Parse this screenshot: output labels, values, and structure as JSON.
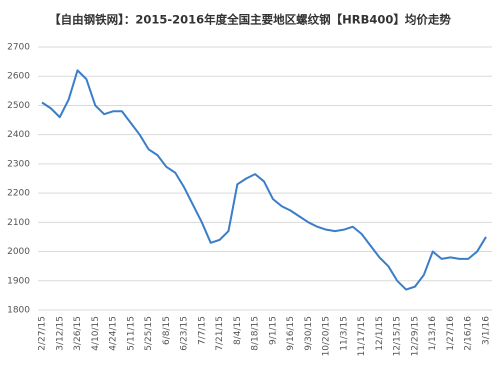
{
  "chart_data": {
    "type": "line",
    "title": "【自由钢铁网】：2015-2016年度全国主要地区螺纹钢【HRB400】均价走势",
    "categories": [
      "2/27/15",
      null,
      "3/12/15",
      null,
      "3/26/15",
      null,
      "4/10/15",
      null,
      "4/24/15",
      null,
      "5/11/15",
      null,
      "5/25/15",
      null,
      "6/8/15",
      null,
      "6/23/15",
      null,
      "7/7/15",
      null,
      "7/21/15",
      null,
      "8/4/15",
      null,
      "8/18/15",
      null,
      "9/1/15",
      null,
      "9/16/15",
      null,
      "9/30/15",
      null,
      "10/20/15",
      null,
      "11/3/15",
      null,
      "11/17/15",
      null,
      "12/1/15",
      null,
      "12/15/15",
      null,
      "12/29/15",
      null,
      "1/13/16",
      null,
      "1/27/16",
      null,
      "2/16/16",
      null,
      "3/1/16"
    ],
    "series": [
      {
        "color": "#3a7dc9",
        "values": [
          2510,
          2490,
          2460,
          2520,
          2620,
          2590,
          2500,
          2470,
          2480,
          2480,
          2440,
          2400,
          2350,
          2330,
          2290,
          2270,
          2220,
          2160,
          2100,
          2030,
          2040,
          2070,
          2230,
          2250,
          2265,
          2240,
          2180,
          2155,
          2140,
          2120,
          2100,
          2085,
          2075,
          2070,
          2075,
          2085,
          2060,
          2020,
          1980,
          1950,
          1900,
          1870,
          1880,
          1920,
          2000,
          1975,
          1980,
          1975,
          1975,
          2000,
          2050
        ]
      }
    ],
    "ylim": [
      1800,
      2700
    ],
    "yticks": [
      1800,
      1900,
      2000,
      2100,
      2200,
      2300,
      2400,
      2500,
      2600,
      2700
    ],
    "grid": true
  }
}
